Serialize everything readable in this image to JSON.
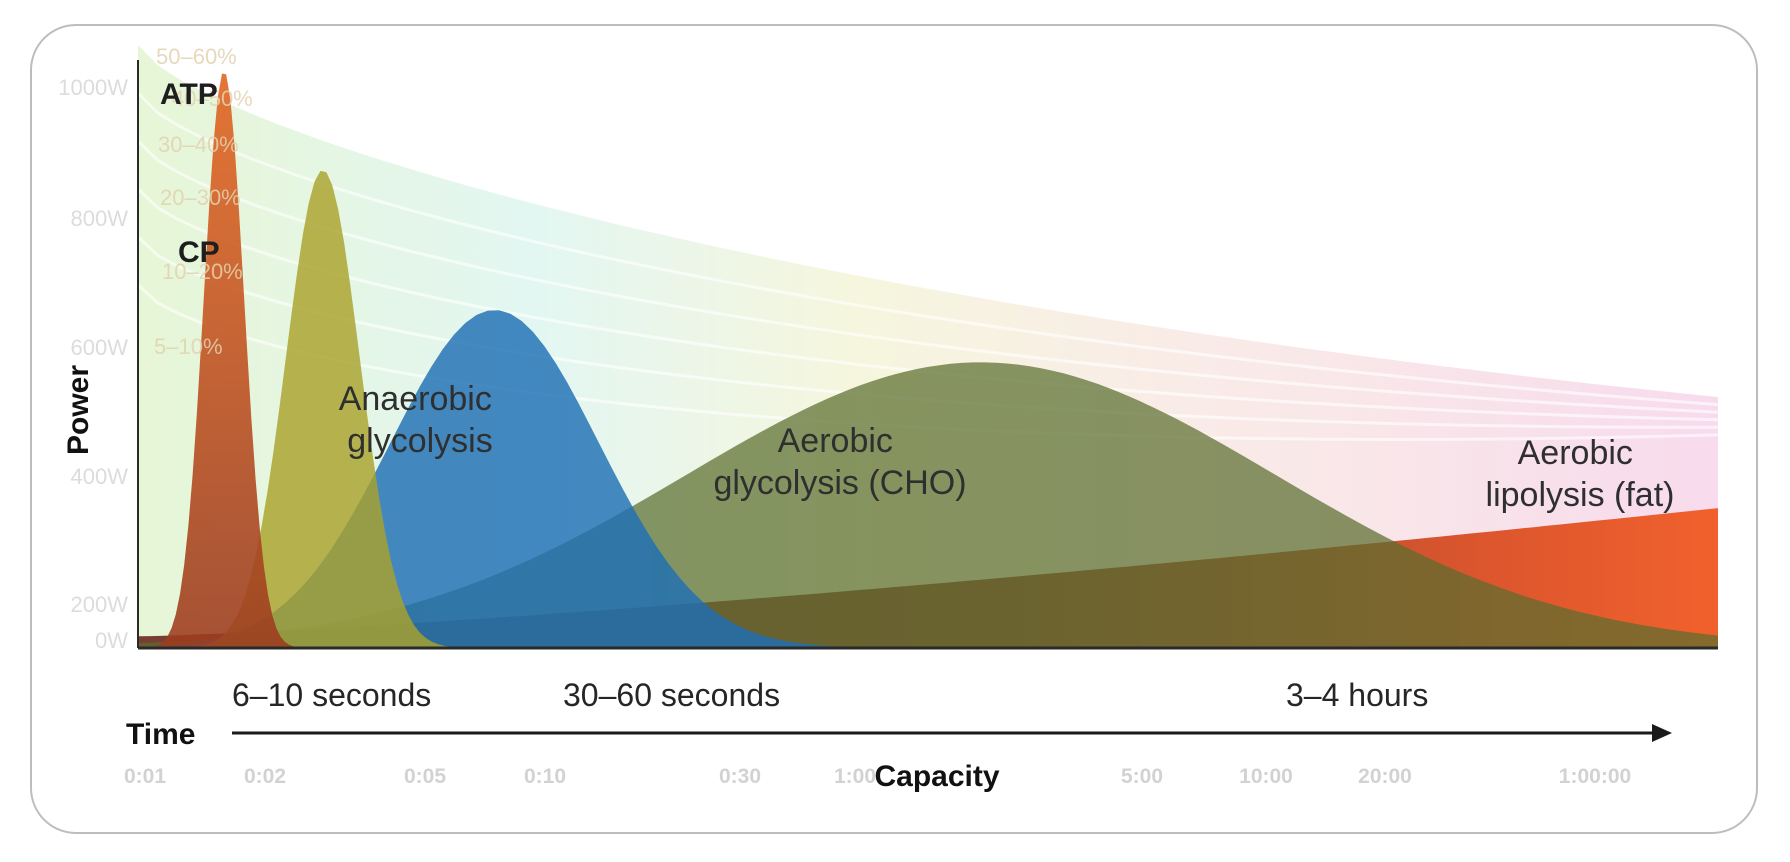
{
  "chart_data": {
    "type": "area",
    "title": "",
    "ylabel": "Power",
    "xlabel": "Capacity",
    "time_label": "Time",
    "y_ticks": [
      "0W",
      "200W",
      "400W",
      "600W",
      "800W",
      "1000W"
    ],
    "ylim": [
      0,
      1000
    ],
    "x_ticks": [
      "0:01",
      "0:02",
      "0:05",
      "0:10",
      "0:30",
      "1:00",
      "5:00",
      "10:00",
      "20:00",
      "1:00:00"
    ],
    "x_scale": "log",
    "background_bands": [
      "5–10%",
      "10–20%",
      "20–30%",
      "30–40%",
      "40–50%",
      "50–60%"
    ],
    "series": [
      {
        "name": "ATP",
        "color": "#d9531c",
        "peak_time_s": 1,
        "peak_power_w": 990
      },
      {
        "name": "CP",
        "color": "#a9a22c",
        "peak_time_s": 1.8,
        "peak_power_w": 820
      },
      {
        "name": "Anaerobic glycolysis",
        "color": "#1f6fb5",
        "peak_time_s": 5,
        "peak_power_w": 580
      },
      {
        "name": "Aerobic glycolysis (CHO)",
        "color": "#5a6e2e",
        "peak_time_s": 90,
        "peak_power_w": 490
      },
      {
        "name": "Aerobic lipolysis (fat)",
        "color": "#e8451d",
        "peak_time_s": 3600,
        "peak_power_w": 240
      }
    ],
    "duration_annotations": [
      "6–10 seconds",
      "30–60 seconds",
      "3–4 hours"
    ],
    "grid": false,
    "legend": "none"
  }
}
